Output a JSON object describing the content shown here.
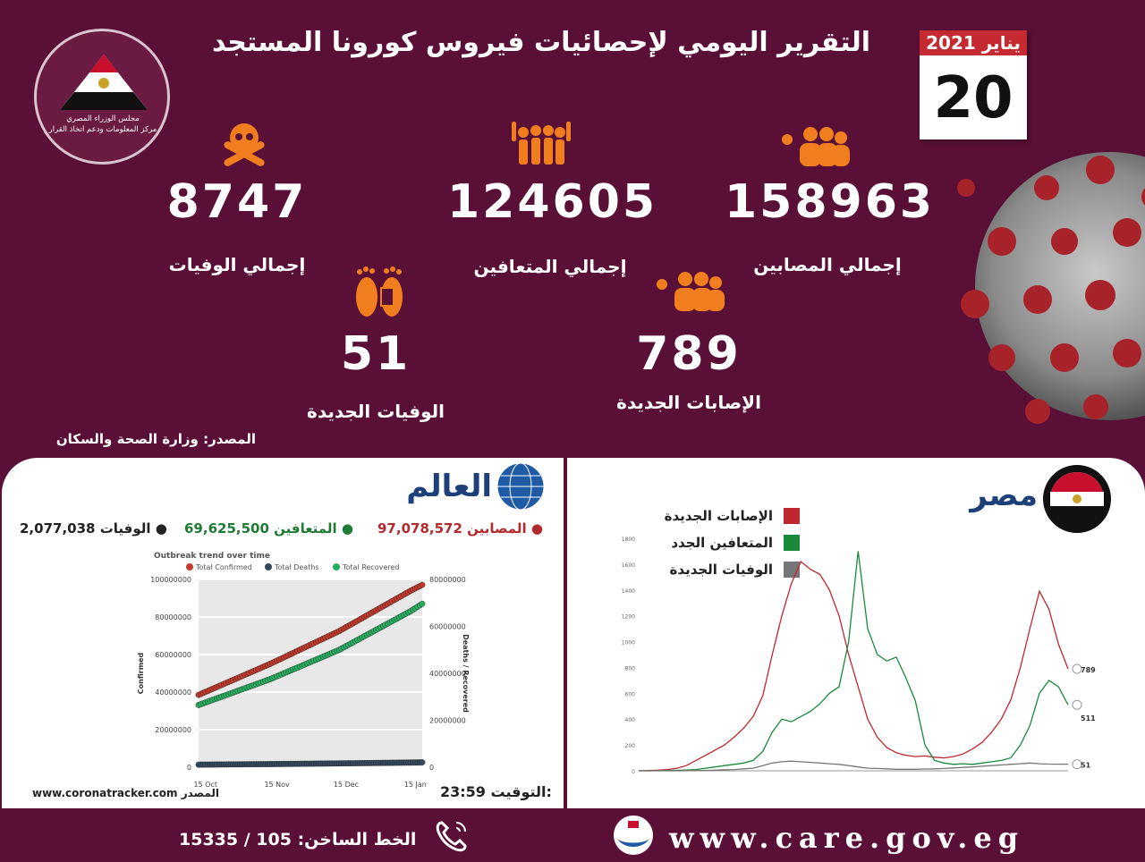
{
  "header": {
    "title": "التقرير اليومي لإحصائيات فيروس كورونا المستجد",
    "month_year": "يناير 2021",
    "day": "20"
  },
  "logo": {
    "line1": "مجلس الوزراء المصري",
    "line2": "مركز المعلومات ودعم اتخاذ القرار"
  },
  "stats": {
    "total_cases": {
      "value": "158963",
      "label": "إجمالي المصابين",
      "icon": "people-virus-icon"
    },
    "total_recovered": {
      "value": "124605",
      "label": "إجمالي المتعافين",
      "icon": "people-raised-hands-icon"
    },
    "total_deaths": {
      "value": "8747",
      "label": "إجمالي الوفيات",
      "icon": "skull-crossbones-icon"
    },
    "new_cases": {
      "value": "789",
      "label": "الإصابات الجديدة",
      "icon": "people-virus-icon"
    },
    "new_deaths": {
      "value": "51",
      "label": "الوفيات الجديدة",
      "icon": "feet-tag-icon"
    }
  },
  "source_top": "المصدر: وزارة الصحة والسكان",
  "world": {
    "title": "العالم",
    "cases_label": "المصابين",
    "cases_value": "97,078,572",
    "recovered_label": "المتعافين",
    "recovered_value": "69,625,500",
    "deaths_label": "الوفيات",
    "deaths_value": "2,077,038",
    "chart_title": "Outbreak trend over time",
    "legend": [
      "Total Confirmed",
      "Total Deaths",
      "Total Recovered"
    ],
    "source_label": "المصدر",
    "source_site": "www.coronatracker.com",
    "time_label": "التوقيت:",
    "time_value": "23:59",
    "colors": {
      "confirmed": "#c0392b",
      "deaths": "#34495e",
      "recovered": "#27ae60"
    }
  },
  "egypt": {
    "title": "مصر",
    "legend": [
      {
        "label": "الإصابات الجديدة",
        "color": "#c0262d"
      },
      {
        "label": "المتعافين الجدد",
        "color": "#1a8a3a"
      },
      {
        "label": "الوفيات الجديدة",
        "color": "#777777"
      }
    ],
    "end_labels": [
      "789",
      "511",
      "51"
    ]
  },
  "footer": {
    "hotline": "الخط الساخن: 105 / 15335",
    "website": "www.care.gov.eg"
  },
  "chart_data": [
    {
      "type": "line",
      "title": "Outbreak trend over time",
      "x": [
        "15 Oct",
        "15 Nov",
        "15 Dec",
        "15 Jan"
      ],
      "xlabel": "",
      "ylabel": "Confirmed",
      "y2label": "Deaths / Recovered",
      "ylim": [
        0,
        100000000
      ],
      "y2lim": [
        0,
        80000000
      ],
      "yticks": [
        "0",
        "20000000",
        "40000000",
        "60000000",
        "80000000",
        "100000000"
      ],
      "y2ticks": [
        "0",
        "20000000",
        "40000000",
        "60000000",
        "80000000"
      ],
      "series": [
        {
          "name": "Total Confirmed",
          "axis": "left",
          "x": [
            0,
            31,
            61,
            92,
            97
          ],
          "values": [
            38500000,
            55000000,
            72500000,
            94000000,
            97078572
          ]
        },
        {
          "name": "Total Deaths",
          "axis": "right",
          "x": [
            0,
            31,
            61,
            92,
            97
          ],
          "values": [
            1090000,
            1330000,
            1620000,
            2000000,
            2077038
          ]
        },
        {
          "name": "Total Recovered",
          "axis": "right",
          "x": [
            0,
            31,
            61,
            92,
            97
          ],
          "values": [
            26500000,
            37500000,
            50000000,
            66500000,
            69625500
          ]
        }
      ]
    },
    {
      "type": "line",
      "title": "",
      "ylim": [
        0,
        1800
      ],
      "series": [
        {
          "name": "الإصابات الجديدة",
          "values": [
            0,
            2,
            5,
            10,
            20,
            40,
            80,
            120,
            160,
            200,
            260,
            330,
            420,
            580,
            900,
            1200,
            1450,
            1620,
            1560,
            1520,
            1400,
            1200,
            900,
            650,
            400,
            260,
            180,
            140,
            120,
            110,
            115,
            105,
            100,
            110,
            130,
            170,
            220,
            300,
            400,
            550,
            800,
            1100,
            1390,
            1250,
            980,
            789
          ]
        },
        {
          "name": "المتعافين الجدد",
          "values": [
            0,
            0,
            1,
            2,
            4,
            6,
            10,
            20,
            30,
            40,
            50,
            60,
            80,
            150,
            300,
            400,
            380,
            420,
            460,
            520,
            600,
            650,
            1000,
            1700,
            1100,
            900,
            850,
            880,
            720,
            540,
            200,
            80,
            60,
            50,
            55,
            50,
            60,
            70,
            80,
            100,
            200,
            350,
            600,
            700,
            650,
            511
          ]
        },
        {
          "name": "الوفيات الجديدة",
          "values": [
            0,
            0,
            0,
            0,
            0,
            1,
            2,
            3,
            5,
            8,
            10,
            15,
            20,
            40,
            60,
            70,
            75,
            70,
            65,
            60,
            55,
            50,
            40,
            30,
            20,
            18,
            15,
            12,
            12,
            12,
            14,
            15,
            18,
            22,
            26,
            30,
            35,
            40,
            45,
            50,
            55,
            60,
            55,
            52,
            51,
            51
          ]
        }
      ]
    }
  ]
}
